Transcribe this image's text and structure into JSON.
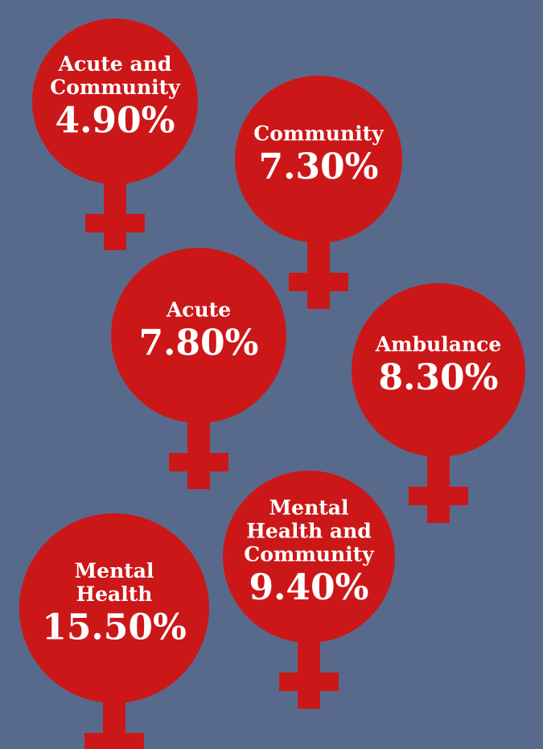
{
  "items": [
    {
      "label": [
        "Acute and",
        "Community"
      ],
      "value": "4.90%"
    },
    {
      "label": [
        "Community"
      ],
      "value": "7.30%"
    },
    {
      "label": [
        "Acute"
      ],
      "value": "7.80%"
    },
    {
      "label": [
        "Ambulance"
      ],
      "value": "8.30%"
    },
    {
      "label": [
        "Mental",
        "Health and",
        "Community"
      ],
      "value": "9.40%"
    },
    {
      "label": [
        "Mental",
        "Health"
      ],
      "value": "15.50%"
    }
  ]
}
